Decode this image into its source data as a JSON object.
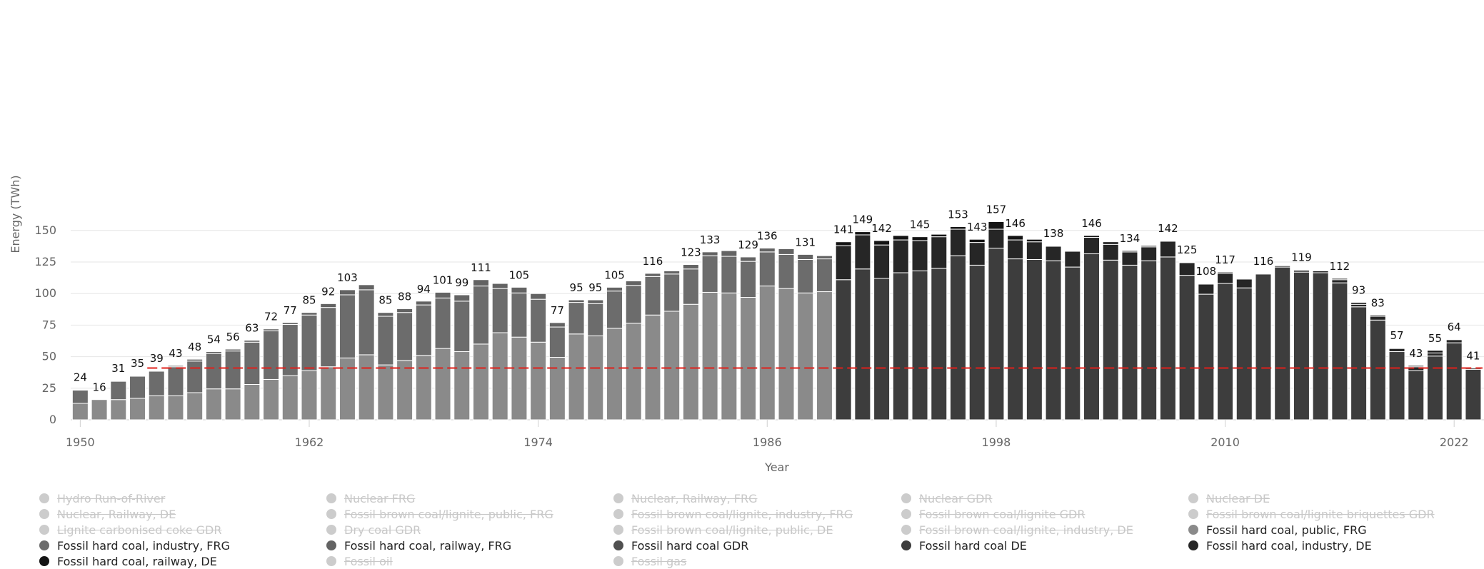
{
  "chart_data": {
    "type": "bar",
    "stacked": true,
    "title": "",
    "xlabel": "Year",
    "ylabel": "Energy (TWh)",
    "ylim": [
      0,
      160
    ],
    "yticks": [
      0,
      25,
      50,
      75,
      100,
      125,
      150
    ],
    "xticks": [
      1950,
      1962,
      1974,
      1986,
      1998,
      2010,
      2022
    ],
    "grid": true,
    "legend_position": "bottom",
    "reference_line": {
      "value": 41,
      "style": "dashed",
      "color": "#e0201b"
    },
    "years": [
      1950,
      1951,
      1952,
      1953,
      1954,
      1955,
      1956,
      1957,
      1958,
      1959,
      1960,
      1961,
      1962,
      1963,
      1964,
      1965,
      1966,
      1967,
      1968,
      1969,
      1970,
      1971,
      1972,
      1973,
      1974,
      1975,
      1976,
      1977,
      1978,
      1979,
      1980,
      1981,
      1982,
      1983,
      1984,
      1985,
      1986,
      1987,
      1988,
      1989,
      1990,
      1991,
      1992,
      1993,
      1994,
      1995,
      1996,
      1997,
      1998,
      1999,
      2000,
      2001,
      2002,
      2003,
      2004,
      2005,
      2006,
      2007,
      2008,
      2009,
      2010,
      2011,
      2012,
      2013,
      2014,
      2015,
      2016,
      2017,
      2018,
      2019,
      2020,
      2021,
      2022,
      2023
    ],
    "totals": [
      24,
      16,
      31,
      35,
      39,
      43,
      48,
      54,
      56,
      63,
      72,
      77,
      85,
      92,
      103,
      107,
      85,
      88,
      94,
      101,
      99,
      111,
      109,
      105,
      100,
      77,
      95,
      95,
      105,
      110,
      116,
      118,
      123,
      133,
      134,
      129,
      136,
      136,
      131,
      130,
      141,
      149,
      142,
      146,
      145,
      147,
      153,
      143,
      157,
      146,
      143,
      138,
      134,
      146,
      141,
      134,
      138,
      142,
      125,
      108,
      117,
      112,
      116,
      122,
      119,
      118,
      112,
      93,
      83,
      57,
      43,
      55,
      64,
      41
    ],
    "total_labels": [
      "24",
      "16",
      "31",
      "35",
      "39",
      "43",
      "48",
      "54",
      "56",
      "63",
      "72",
      "77",
      "85",
      "92",
      "103",
      "",
      "85",
      "88",
      "94",
      "101",
      "99",
      "111",
      "",
      "105",
      "",
      "77",
      "95",
      "95",
      "105",
      "",
      "116",
      "",
      "123",
      "133",
      "",
      "129",
      "136",
      "",
      "131",
      "",
      "141",
      "149",
      "142",
      "",
      "145",
      "",
      "153",
      "143",
      "157",
      "146",
      "",
      "138",
      "",
      "146",
      "",
      "134",
      "",
      "142",
      "125",
      "108",
      "117",
      "",
      "116",
      "",
      "119",
      "",
      "112",
      "93",
      "83",
      "57",
      "43",
      "55",
      "64",
      "41"
    ],
    "series": [
      {
        "name": "Fossil hard coal, public, FRG",
        "color": "#8a8a8a",
        "values": [
          13,
          16,
          16,
          17,
          19,
          19,
          21.5,
          24.5,
          24.5,
          28,
          32,
          35,
          39,
          42,
          49,
          51.5,
          43.5,
          47,
          51,
          56.5,
          54,
          60,
          69,
          65.5,
          61.5,
          49.5,
          68,
          66.5,
          72.5,
          76.5,
          83,
          86,
          91.5,
          101,
          100.5,
          97,
          106,
          104,
          100.5,
          101.5,
          0,
          0,
          0,
          0,
          0,
          0,
          0,
          0,
          0,
          0,
          0,
          0,
          0,
          0,
          0,
          0,
          0,
          0,
          0,
          0,
          0,
          0,
          0,
          0,
          0,
          0,
          0,
          0,
          0,
          0,
          0,
          0,
          0,
          0
        ]
      },
      {
        "name": "Fossil hard coal, industry, FRG",
        "color": "#6c6c6c",
        "values": [
          10.5,
          0,
          14.5,
          17.5,
          19.5,
          23,
          25,
          28,
          30,
          33.5,
          38.5,
          40.5,
          44,
          47,
          50,
          51.5,
          38.5,
          38,
          40,
          40,
          40,
          46,
          35,
          35,
          34,
          24,
          25,
          25.5,
          29.5,
          30,
          30.5,
          29.5,
          28,
          29,
          29,
          28.5,
          27,
          27,
          26.5,
          26,
          0,
          0,
          0,
          0,
          0,
          0,
          0,
          0,
          0,
          0,
          0,
          0,
          0,
          0,
          0,
          0,
          0,
          0,
          0,
          0,
          0,
          0,
          0,
          0,
          0,
          0,
          0,
          0,
          0,
          0,
          0,
          0,
          0,
          0
        ]
      },
      {
        "name": "Fossil hard coal, railway, FRG",
        "color": "#636363",
        "values": [
          0.5,
          0,
          0.5,
          0.5,
          0.5,
          1,
          1.5,
          1.5,
          1.5,
          1.5,
          1.5,
          1.5,
          2,
          3,
          4,
          4,
          3,
          3,
          3,
          4.5,
          5,
          5,
          4,
          4.5,
          4.5,
          3.5,
          2,
          3,
          3,
          3.5,
          2.5,
          2.5,
          3.5,
          3,
          4.5,
          3.5,
          3,
          4.5,
          4,
          2.5,
          0,
          0,
          0,
          0,
          0,
          0,
          0,
          0,
          0,
          0,
          0,
          0,
          0,
          0,
          0,
          0,
          0,
          0,
          0,
          0,
          0,
          0,
          0,
          0,
          0,
          0,
          0,
          0,
          0,
          0,
          0,
          0,
          0,
          0
        ]
      },
      {
        "name": "Fossil hard coal GDR",
        "color": "#505050",
        "values": [
          0,
          0,
          0,
          0,
          0,
          0,
          0,
          0,
          0,
          0,
          0,
          0,
          0,
          0,
          0,
          0,
          0,
          0,
          0,
          0,
          0,
          0,
          0,
          0,
          0,
          0,
          0,
          0,
          0,
          0,
          0,
          0,
          0,
          0,
          0,
          0,
          0,
          0,
          0,
          0,
          0,
          0,
          0,
          0,
          0,
          0,
          0,
          0,
          0,
          0,
          0,
          0,
          0,
          0,
          0,
          0,
          0,
          0,
          0,
          0,
          0,
          0,
          0,
          0,
          0,
          0,
          0,
          0,
          0,
          0,
          0,
          0,
          0,
          0
        ]
      },
      {
        "name": "Fossil hard coal DE",
        "color": "#3d3d3d",
        "values": [
          0,
          0,
          0,
          0,
          0,
          0,
          0,
          0,
          0,
          0,
          0,
          0,
          0,
          0,
          0,
          0,
          0,
          0,
          0,
          0,
          0,
          0,
          0,
          0,
          0,
          0,
          0,
          0,
          0,
          0,
          0,
          0,
          0,
          0,
          0,
          0,
          0,
          0,
          0,
          0,
          111,
          119.5,
          112,
          116.5,
          118,
          120,
          130,
          122.5,
          136,
          127.5,
          127,
          126,
          121,
          131.5,
          126.5,
          122.5,
          126,
          129,
          114.5,
          99.5,
          108,
          104.5,
          115.5,
          121,
          117,
          116.5,
          108.5,
          89.5,
          79,
          54,
          39,
          50.5,
          61,
          40
        ]
      },
      {
        "name": "Fossil hard coal, industry, DE",
        "color": "#262626",
        "values": [
          0,
          0,
          0,
          0,
          0,
          0,
          0,
          0,
          0,
          0,
          0,
          0,
          0,
          0,
          0,
          0,
          0,
          0,
          0,
          0,
          0,
          0,
          0,
          0,
          0,
          0,
          0,
          0,
          0,
          0,
          0,
          0,
          0,
          0,
          0,
          0,
          0,
          0,
          0,
          0,
          27,
          27,
          26.5,
          26,
          24,
          25,
          21,
          18,
          15,
          15,
          14,
          11.5,
          12.5,
          13,
          12.5,
          10.5,
          11,
          12.5,
          10,
          8,
          8,
          7,
          0,
          0,
          1.5,
          1.5,
          2.5,
          2,
          3,
          2.5,
          3,
          2.5,
          2.5,
          1
        ]
      },
      {
        "name": "Fossil hard coal, railway, DE",
        "color": "#141414",
        "values": [
          0,
          0,
          0,
          0,
          0,
          0,
          0,
          0,
          0,
          0,
          0,
          0,
          0,
          0,
          0,
          0,
          0,
          0,
          0,
          0,
          0,
          0,
          0,
          0,
          0,
          0,
          0,
          0,
          0,
          0,
          0,
          0,
          0,
          0,
          0,
          0,
          0,
          0,
          0,
          0,
          3,
          2.5,
          3.5,
          3.5,
          3,
          2,
          2,
          2.5,
          6,
          3.5,
          2,
          0.5,
          0.5,
          1.5,
          2,
          1,
          1,
          0.5,
          0.5,
          0.5,
          1,
          0.5,
          0.5,
          1,
          0.5,
          0,
          1,
          1.5,
          1,
          0.5,
          1,
          2,
          0.5,
          0
        ]
      }
    ],
    "legend": [
      {
        "label": "Hydro Run-of-River",
        "color": "#cccccc",
        "visible": false
      },
      {
        "label": "Nuclear FRG",
        "color": "#cccccc",
        "visible": false
      },
      {
        "label": "Nuclear, Railway, FRG",
        "color": "#cccccc",
        "visible": false
      },
      {
        "label": "Nuclear GDR",
        "color": "#cccccc",
        "visible": false
      },
      {
        "label": "Nuclear DE",
        "color": "#cccccc",
        "visible": false
      },
      {
        "label": "Nuclear, Railway, DE",
        "color": "#cccccc",
        "visible": false
      },
      {
        "label": "Fossil brown coal/lignite, public, FRG",
        "color": "#cccccc",
        "visible": false
      },
      {
        "label": "Fossil brown coal/lignite, industry, FRG",
        "color": "#cccccc",
        "visible": false
      },
      {
        "label": "Fossil brown coal/lignite GDR",
        "color": "#cccccc",
        "visible": false
      },
      {
        "label": "Fossil brown coal/lignite briquettes GDR",
        "color": "#cccccc",
        "visible": false
      },
      {
        "label": "Lignite carbonised coke GDR",
        "color": "#cccccc",
        "visible": false
      },
      {
        "label": "Dry coal GDR",
        "color": "#cccccc",
        "visible": false
      },
      {
        "label": "Fossil brown coal/lignite, public, DE",
        "color": "#cccccc",
        "visible": false
      },
      {
        "label": "Fossil brown coal/lignite, industry, DE",
        "color": "#cccccc",
        "visible": false
      },
      {
        "label": "Fossil hard coal, public, FRG",
        "color": "#8a8a8a",
        "visible": true
      },
      {
        "label": "Fossil hard coal, industry, FRG",
        "color": "#6c6c6c",
        "visible": true
      },
      {
        "label": "Fossil hard coal, railway, FRG",
        "color": "#636363",
        "visible": true
      },
      {
        "label": "Fossil hard coal GDR",
        "color": "#505050",
        "visible": true
      },
      {
        "label": "Fossil hard coal DE",
        "color": "#3d3d3d",
        "visible": true
      },
      {
        "label": "Fossil hard coal, industry, DE",
        "color": "#262626",
        "visible": true
      },
      {
        "label": "Fossil hard coal, railway, DE",
        "color": "#141414",
        "visible": true
      },
      {
        "label": "Fossil oil",
        "color": "#cccccc",
        "visible": false
      },
      {
        "label": "Fossil gas",
        "color": "#cccccc",
        "visible": false
      }
    ]
  }
}
